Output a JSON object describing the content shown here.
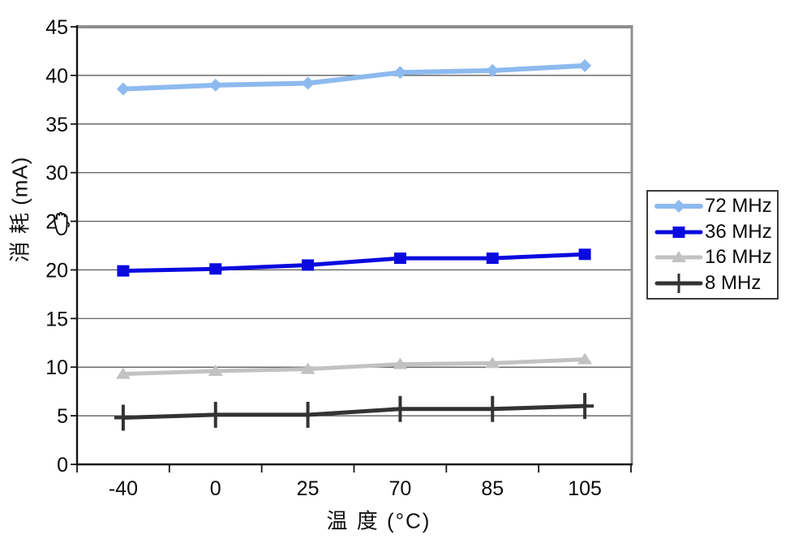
{
  "chart_data": {
    "type": "line",
    "title": "",
    "xlabel": "温 度 (°C)",
    "ylabel": "消 耗 (mA)",
    "categories": [
      "-40",
      "0",
      "25",
      "70",
      "85",
      "105"
    ],
    "yticks": [
      0,
      5,
      10,
      15,
      20,
      25,
      30,
      35,
      40,
      45
    ],
    "ylim": [
      0,
      45
    ],
    "grid": "horizontal",
    "legend_position": "right",
    "series": [
      {
        "name": "72 MHz",
        "color": "#8DBAEF",
        "marker": "diamond",
        "line_width": 6,
        "values": [
          38.6,
          39.0,
          39.2,
          40.3,
          40.5,
          41.0
        ]
      },
      {
        "name": "36 MHz",
        "color": "#0A0ADF",
        "marker": "square",
        "line_width": 5,
        "values": [
          19.9,
          20.1,
          20.5,
          21.2,
          21.2,
          21.6
        ]
      },
      {
        "name": "16 MHz",
        "color": "#C2C2C2",
        "marker": "triangle",
        "line_width": 5,
        "values": [
          9.3,
          9.6,
          9.8,
          10.3,
          10.4,
          10.8
        ]
      },
      {
        "name": "8 MHz",
        "color": "#333333",
        "marker": "plus",
        "line_width": 5,
        "values": [
          4.8,
          5.1,
          5.1,
          5.7,
          5.7,
          6.0
        ]
      }
    ],
    "colors": {
      "axis": "#141414",
      "gridline": "#4f4f4f",
      "plot_border": "#8f8f8f",
      "text": "#0a0a0a"
    }
  },
  "cursor_artifact": {
    "type": "hand-cursor",
    "over_y_tick_label": "25"
  }
}
